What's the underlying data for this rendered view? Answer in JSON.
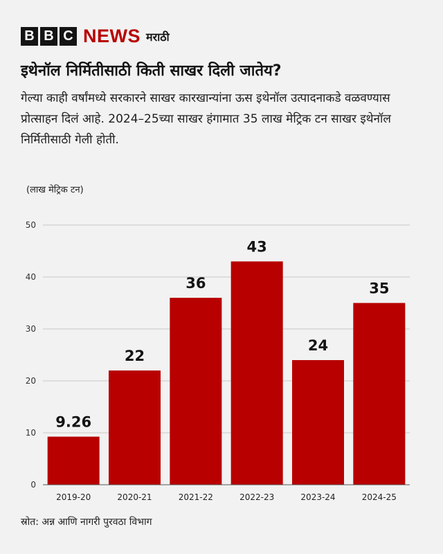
{
  "brand": {
    "blocks": [
      "B",
      "B",
      "C"
    ],
    "news": "NEWS",
    "language": "मराठी",
    "accent_color": "#b80000"
  },
  "headline": "इथेनॉल निर्मितीसाठी किती साखर दिली जातेय?",
  "subtitle": "गेल्या काही वर्षांमध्ये सरकारने साखर कारखान्यांना ऊस इथेनॉल उत्पादनाकडे वळवण्यास प्रोत्साहन दिलं आहे. 2024–25च्या साखर हंगामात 35 लाख मेट्रिक टन साखर इथेनॉल निर्मितीसाठी गेली होती.",
  "source": "स्रोत: अन्न आणि नागरी पुरवठा विभाग",
  "chart_data": {
    "type": "bar",
    "title": "",
    "xlabel": "",
    "ylabel": "(लाख मेट्रिक टन)",
    "categories": [
      "2019-20",
      "2020-21",
      "2021-22",
      "2022-23",
      "2023-24",
      "2024-25"
    ],
    "values": [
      9.26,
      22,
      36,
      43,
      24,
      35
    ],
    "value_labels": [
      "9.26",
      "22",
      "36",
      "43",
      "24",
      "35"
    ],
    "ylim": [
      0,
      50
    ],
    "yticks": [
      0,
      10,
      20,
      30,
      40,
      50
    ],
    "grid": true,
    "bar_color": "#b80000"
  }
}
